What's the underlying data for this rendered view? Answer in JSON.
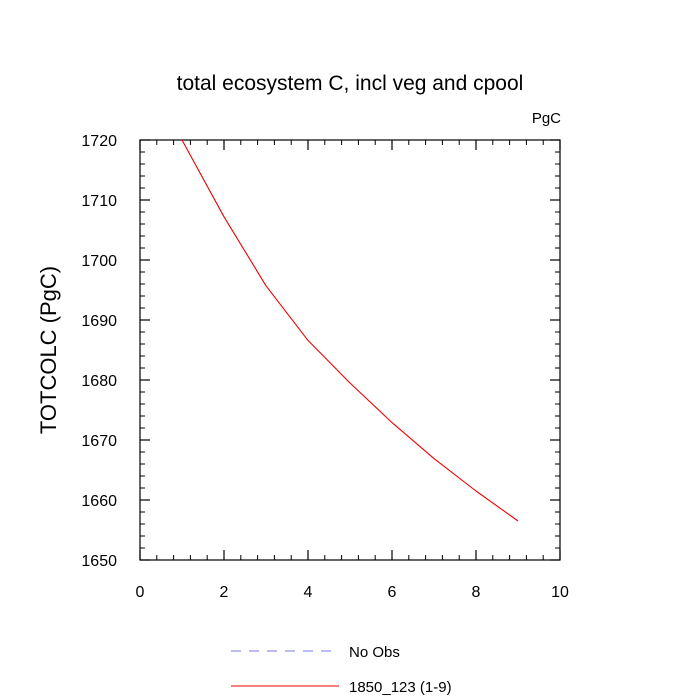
{
  "chart_data": {
    "type": "line",
    "title": "total ecosystem C, incl veg and cpool",
    "units_label": "PgC",
    "xlabel": "",
    "ylabel": "TOTCOLC  (PgC)",
    "xlim": [
      0,
      10
    ],
    "ylim": [
      1650,
      1720
    ],
    "x_ticks": [
      0,
      2,
      4,
      6,
      8,
      10
    ],
    "y_ticks": [
      1650,
      1660,
      1670,
      1680,
      1690,
      1700,
      1710,
      1720
    ],
    "grid": false,
    "legend_placement": "bottom",
    "series": [
      {
        "name": "No Obs",
        "style": "dashed",
        "color": "#7777ee",
        "x": [],
        "y": []
      },
      {
        "name": "1850_123 (1-9)",
        "style": "solid",
        "color": "#ee0000",
        "x": [
          1,
          2,
          3,
          4,
          5,
          6,
          7,
          8,
          9
        ],
        "y": [
          1720,
          1707.2,
          1695.7,
          1686.6,
          1679.5,
          1672.9,
          1666.9,
          1661.5,
          1656.5
        ]
      }
    ]
  }
}
